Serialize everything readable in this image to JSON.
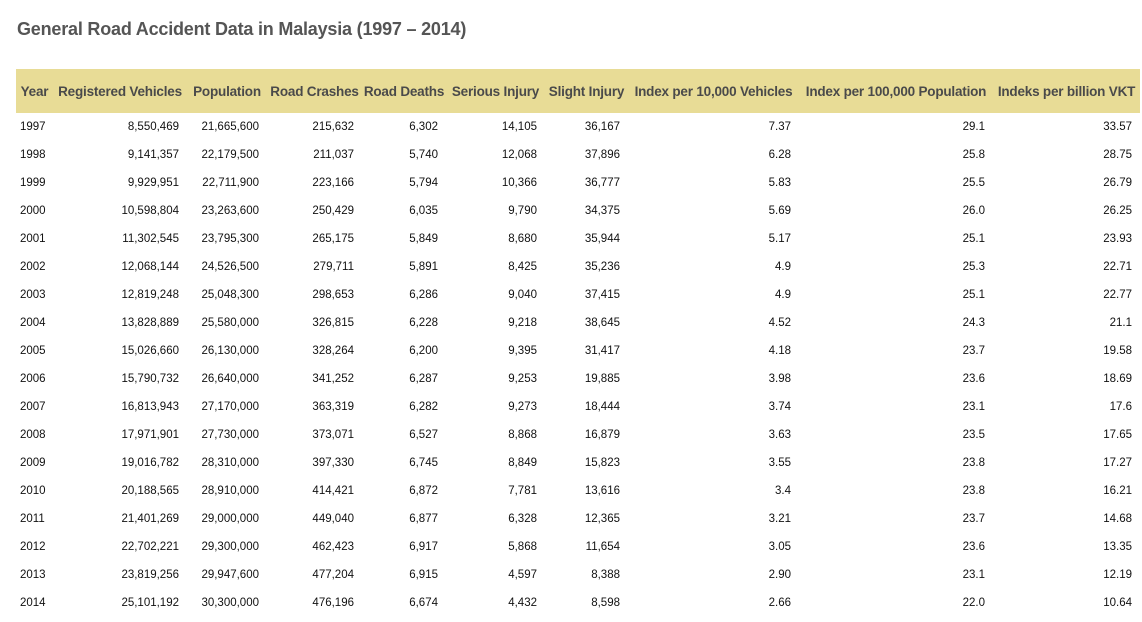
{
  "page": {
    "title": "General Road Accident Data in Malaysia (1997 – 2014)"
  },
  "colors": {
    "header_background": "#e8dc96",
    "title_text": "#555555"
  },
  "table": {
    "columns": [
      "Year",
      "Registered Vehicles",
      "Population",
      "Road Crashes",
      "Road Deaths",
      "Serious Injury",
      "Slight Injury",
      "Index per 10,000 Vehicles",
      "Index per 100,000 Population",
      "Indeks per billion VKT"
    ],
    "rows": [
      [
        "1997",
        "8,550,469",
        "21,665,600",
        "215,632",
        "6,302",
        "14,105",
        "36,167",
        "7.37",
        "29.1",
        "33.57"
      ],
      [
        "1998",
        "9,141,357",
        "22,179,500",
        "211,037",
        "5,740",
        "12,068",
        "37,896",
        "6.28",
        "25.8",
        "28.75"
      ],
      [
        "1999",
        "9,929,951",
        "22,711,900",
        "223,166",
        "5,794",
        "10,366",
        "36,777",
        "5.83",
        "25.5",
        "26.79"
      ],
      [
        "2000",
        "10,598,804",
        "23,263,600",
        "250,429",
        "6,035",
        "9,790",
        "34,375",
        "5.69",
        "26.0",
        "26.25"
      ],
      [
        "2001",
        "11,302,545",
        "23,795,300",
        "265,175",
        "5,849",
        "8,680",
        "35,944",
        "5.17",
        "25.1",
        "23.93"
      ],
      [
        "2002",
        "12,068,144",
        "24,526,500",
        "279,711",
        "5,891",
        "8,425",
        "35,236",
        "4.9",
        "25.3",
        "22.71"
      ],
      [
        "2003",
        "12,819,248",
        "25,048,300",
        "298,653",
        "6,286",
        "9,040",
        "37,415",
        "4.9",
        "25.1",
        "22.77"
      ],
      [
        "2004",
        "13,828,889",
        "25,580,000",
        "326,815",
        "6,228",
        "9,218",
        "38,645",
        "4.52",
        "24.3",
        "21.1"
      ],
      [
        "2005",
        "15,026,660",
        "26,130,000",
        "328,264",
        "6,200",
        "9,395",
        "31,417",
        "4.18",
        "23.7",
        "19.58"
      ],
      [
        "2006",
        "15,790,732",
        "26,640,000",
        "341,252",
        "6,287",
        "9,253",
        "19,885",
        "3.98",
        "23.6",
        "18.69"
      ],
      [
        "2007",
        "16,813,943",
        "27,170,000",
        "363,319",
        "6,282",
        "9,273",
        "18,444",
        "3.74",
        "23.1",
        "17.6"
      ],
      [
        "2008",
        "17,971,901",
        "27,730,000",
        "373,071",
        "6,527",
        "8,868",
        "16,879",
        "3.63",
        "23.5",
        "17.65"
      ],
      [
        "2009",
        "19,016,782",
        "28,310,000",
        "397,330",
        "6,745",
        "8,849",
        "15,823",
        "3.55",
        "23.8",
        "17.27"
      ],
      [
        "2010",
        "20,188,565",
        "28,910,000",
        "414,421",
        "6,872",
        "7,781",
        "13,616",
        "3.4",
        "23.8",
        "16.21"
      ],
      [
        "2011",
        "21,401,269",
        "29,000,000",
        "449,040",
        "6,877",
        "6,328",
        "12,365",
        "3.21",
        "23.7",
        "14.68"
      ],
      [
        "2012",
        "22,702,221",
        "29,300,000",
        "462,423",
        "6,917",
        "5,868",
        "11,654",
        "3.05",
        "23.6",
        "13.35"
      ],
      [
        "2013",
        "23,819,256",
        "29,947,600",
        "477,204",
        "6,915",
        "4,597",
        "8,388",
        "2.90",
        "23.1",
        "12.19"
      ],
      [
        "2014",
        "25,101,192",
        "30,300,000",
        "476,196",
        "6,674",
        "4,432",
        "8,598",
        "2.66",
        "22.0",
        "10.64"
      ]
    ]
  }
}
